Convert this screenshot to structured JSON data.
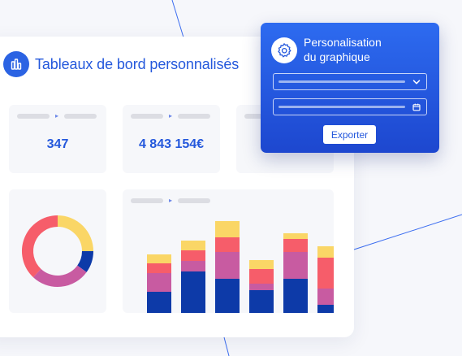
{
  "dashboard": {
    "title": "Tableaux de bord personnalisés",
    "kpis": [
      {
        "value": "347"
      },
      {
        "value": "4 843 154€"
      },
      {
        "value": ""
      }
    ]
  },
  "panel": {
    "title_line1": "Personalisation",
    "title_line2": "du graphique",
    "export_label": "Exporter",
    "field_icons": [
      "chevron-down-icon",
      "calendar-icon"
    ]
  },
  "colors": {
    "brand_blue": "#2458dc",
    "navy": "#0d3aa8",
    "magenta": "#c85ba1",
    "coral": "#f65d6a",
    "yellow": "#fad666"
  },
  "chart_data": [
    {
      "type": "pie",
      "variant": "donut",
      "slices": [
        {
          "color": "#fad666",
          "value": 25
        },
        {
          "color": "#0d3aa8",
          "value": 10
        },
        {
          "color": "#c85ba1",
          "value": 27
        },
        {
          "color": "#f65d6a",
          "value": 38
        }
      ]
    },
    {
      "type": "bar",
      "stacked": true,
      "bars": [
        {
          "navy": 26,
          "magenta": 23,
          "coral": 12,
          "yellow": 11
        },
        {
          "navy": 51,
          "magenta": 13,
          "coral": 13,
          "yellow": 12
        },
        {
          "navy": 42,
          "magenta": 33,
          "coral": 18,
          "yellow": 20
        },
        {
          "navy": 28,
          "magenta": 8,
          "coral": 18,
          "yellow": 11
        },
        {
          "navy": 42,
          "magenta": 33,
          "coral": 16,
          "yellow": 7
        },
        {
          "navy": 10,
          "magenta": 20,
          "coral": 38,
          "yellow": 14
        }
      ]
    }
  ]
}
